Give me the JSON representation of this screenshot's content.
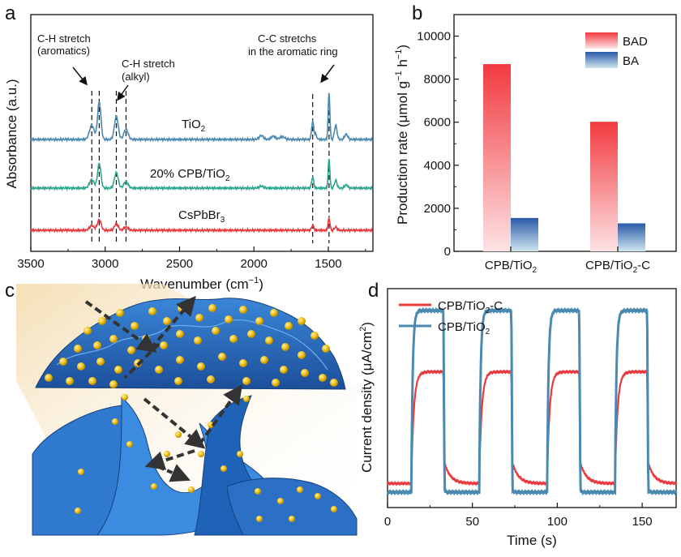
{
  "panel_labels": {
    "a": "a",
    "b": "b",
    "c": "c",
    "d": "d"
  },
  "colors": {
    "tio2": "#4a8ab0",
    "cpb_tio2": "#2fa590",
    "cspbbr3": "#e8393f",
    "bad_top": "#f23a3f",
    "bad_bottom": "#fde3e5",
    "ba_top": "#2a5aa8",
    "ba_bottom": "#cfe6ef",
    "d_red": "#e8393f",
    "d_blue": "#4a8ab0"
  },
  "chart_data": [
    {
      "panel": "a",
      "type": "line",
      "xlabel": "Wavenumber (cm",
      "xlabel_sup": "−1",
      "xlabel_end": ")",
      "ylabel": "Absorbance (a.u.)",
      "xlim": [
        3500,
        1200
      ],
      "xticks": [
        "3500",
        "3000",
        "2500",
        "2000",
        "1500"
      ],
      "xtick_values": [
        3500,
        3000,
        2500,
        2000,
        1500
      ],
      "series": [
        {
          "name": "TiO",
          "sub": "2",
          "color_key": "tio2",
          "baseline": 0.66,
          "peaks": [
            [
              3090,
              0.22,
              22
            ],
            [
              3040,
              0.58,
              16
            ],
            [
              2925,
              0.36,
              18
            ],
            [
              2860,
              0.16,
              20
            ],
            [
              1950,
              0.06,
              20
            ],
            [
              1870,
              0.05,
              20
            ],
            [
              1810,
              0.04,
              25
            ],
            [
              1605,
              0.28,
              10
            ],
            [
              1585,
              0.08,
              10
            ],
            [
              1495,
              0.72,
              8
            ],
            [
              1450,
              0.22,
              12
            ],
            [
              1380,
              0.08,
              15
            ]
          ]
        },
        {
          "name": "20% CPB/TiO",
          "sub": "2",
          "color_key": "cpb_tio2",
          "baseline": 0.35,
          "peaks": [
            [
              3090,
              0.13,
              22
            ],
            [
              3040,
              0.38,
              16
            ],
            [
              2925,
              0.24,
              18
            ],
            [
              2860,
              0.1,
              20
            ],
            [
              1950,
              0.03,
              20
            ],
            [
              1605,
              0.17,
              10
            ],
            [
              1495,
              0.45,
              8
            ],
            [
              1450,
              0.12,
              12
            ],
            [
              1380,
              0.05,
              15
            ]
          ]
        },
        {
          "name": "CsPbBr",
          "sub": "3",
          "color_key": "cspbbr3",
          "baseline": 0.08,
          "peaks": [
            [
              3090,
              0.07,
              22
            ],
            [
              3040,
              0.16,
              18
            ],
            [
              2925,
              0.1,
              18
            ],
            [
              2860,
              0.05,
              20
            ],
            [
              1605,
              0.08,
              10
            ],
            [
              1495,
              0.18,
              9
            ],
            [
              1450,
              0.05,
              12
            ]
          ]
        }
      ],
      "dashed_lines": [
        3090,
        3040,
        2925,
        2860,
        1605,
        1495
      ],
      "annotations": [
        {
          "line1": "C-H stretch",
          "line2": "(aromatics)"
        },
        {
          "line1": "C-H stretch",
          "line2": "(alkyl)"
        },
        {
          "line1": "C-C stretchs",
          "line2": "in the aromatic ring"
        }
      ]
    },
    {
      "panel": "b",
      "type": "bar",
      "categories": [
        "CPB/TiO₂",
        "CPB/TiO₂-C"
      ],
      "cat_main": [
        "CPB/TiO",
        "CPB/TiO"
      ],
      "cat_sub": [
        "2",
        "2"
      ],
      "cat_tail": [
        "",
        "-C"
      ],
      "series": [
        {
          "name": "BAD",
          "values": [
            8700,
            6020
          ]
        },
        {
          "name": "BA",
          "values": [
            1550,
            1300
          ]
        }
      ],
      "ylim": [
        0,
        11000
      ],
      "yticks": [
        "0",
        "2000",
        "4000",
        "6000",
        "8000",
        "10000"
      ],
      "ytick_values": [
        0,
        2000,
        4000,
        6000,
        8000,
        10000
      ],
      "ylabel": "Production rate (μmol g",
      "ylabel_sup1": "−1",
      "ylabel_mid": " h",
      "ylabel_sup2": "−1",
      "ylabel_end": ")",
      "legend_placement": "top-right"
    },
    {
      "panel": "d",
      "type": "line",
      "xlabel": "Time (s)",
      "ylabel": "Current density (μA/cm",
      "ylabel_sup": "2",
      "ylabel_end": ")",
      "xlim": [
        0,
        170
      ],
      "xticks": [
        "0",
        "50",
        "100",
        "150"
      ],
      "xtick_values": [
        0,
        50,
        100,
        150
      ],
      "on_intervals": [
        [
          14,
          33
        ],
        [
          54,
          73
        ],
        [
          94,
          113
        ],
        [
          134,
          153
        ]
      ],
      "series": [
        {
          "name": "CPB/TiO",
          "sub": "2",
          "tail": "-C",
          "color_key": "d_red",
          "dark": 0.11,
          "light": 0.62,
          "rise_tau": 1.5,
          "decay_tau": 3.5
        },
        {
          "name": "CPB/TiO",
          "sub": "2",
          "tail": "",
          "color_key": "d_blue",
          "dark": 0.07,
          "light": 0.9,
          "rise_tau": 0.8,
          "decay_tau": 0.6
        }
      ],
      "legend_placement": "top-left"
    }
  ]
}
